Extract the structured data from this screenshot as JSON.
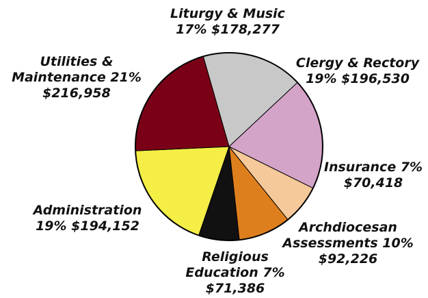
{
  "chart_data": {
    "type": "pie",
    "title": "",
    "start_angle_deg": -106,
    "direction": "clockwise",
    "slices": [
      {
        "name": "Liturgy & Music",
        "percent": 17,
        "amount": 178277,
        "color": "#c8c8c8",
        "label_lines": [
          "Liturgy & Music",
          "17% $178,277"
        ]
      },
      {
        "name": "Clergy & Rectory",
        "percent": 19,
        "amount": 196530,
        "color": "#d4a3c8",
        "label_lines": [
          "Clergy & Rectory",
          "19% $196,530"
        ]
      },
      {
        "name": "Insurance",
        "percent": 7,
        "amount": 70418,
        "color": "#f5c99a",
        "label_lines": [
          "Insurance 7%",
          "$70,418"
        ]
      },
      {
        "name": "Archdiocesan Assessments",
        "percent": 10,
        "amount": 92226,
        "color": "#de7f1e",
        "label_lines": [
          "Archdiocesan",
          "Assessments 10%",
          "$92,226"
        ]
      },
      {
        "name": "Religious Education",
        "percent": 7,
        "amount": 71386,
        "color": "#111111",
        "label_lines": [
          "Religious",
          "Education 7%",
          "$71,386"
        ]
      },
      {
        "name": "Administration",
        "percent": 19,
        "amount": 194152,
        "color": "#f4ee46",
        "label_lines": [
          "Administration",
          "19% $194,152"
        ]
      },
      {
        "name": "Utilities & Maintenance",
        "percent": 21,
        "amount": 216958,
        "color": "#7a0018",
        "label_lines": [
          "Utilities &",
          "Maintenance 21%",
          "$216,958"
        ]
      }
    ]
  }
}
